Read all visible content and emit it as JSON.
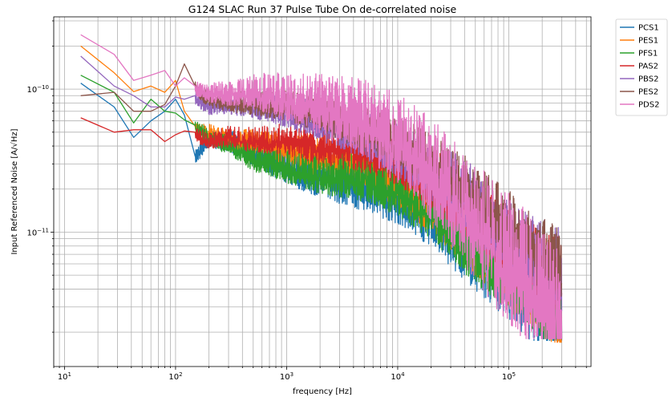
{
  "chart_data": {
    "type": "line",
    "title": "G124 SLAC Run 37 Pulse Tube On de-correlated noise",
    "xlabel": "frequency [Hz]",
    "ylabel": "Input Referenced Noise [A/√Hz]",
    "xscale": "log",
    "yscale": "log",
    "xlim": [
      8,
      550000
    ],
    "ylim": [
      1.15e-12,
      3.2e-10
    ],
    "grid": "major-and-minor",
    "legend_position": "outside-top-right",
    "x_ticks": [
      {
        "value": 10,
        "base": "10",
        "exp": "1"
      },
      {
        "value": 100,
        "base": "10",
        "exp": "2"
      },
      {
        "value": 1000,
        "base": "10",
        "exp": "3"
      },
      {
        "value": 10000,
        "base": "10",
        "exp": "4"
      },
      {
        "value": 100000,
        "base": "10",
        "exp": "5"
      }
    ],
    "y_ticks": [
      {
        "value": 1e-10,
        "base": "10",
        "exp": "−10"
      },
      {
        "value": 1e-11,
        "base": "10",
        "exp": "−11"
      }
    ],
    "series": [
      {
        "name": "PCS1",
        "color": "#1f77b4",
        "points": [
          [
            14,
            1.1e-10
          ],
          [
            28,
            7.5e-11
          ],
          [
            42,
            4.6e-11
          ],
          [
            60,
            6e-11
          ],
          [
            80,
            7e-11
          ],
          [
            100,
            8.5e-11
          ],
          [
            120,
            6.6e-11
          ],
          [
            150,
            3.4e-11
          ],
          [
            200,
            4.7e-11
          ],
          [
            300,
            4.6e-11
          ],
          [
            500,
            3.9e-11
          ],
          [
            1000,
            3.1e-11
          ],
          [
            2000,
            2.7e-11
          ],
          [
            5000,
            2.4e-11
          ],
          [
            10000,
            2.1e-11
          ],
          [
            20000,
            1.6e-11
          ],
          [
            40000,
            1e-11
          ],
          [
            80000,
            6.5e-12
          ],
          [
            150000,
            4.6e-12
          ],
          [
            300000,
            3.3e-12
          ]
        ],
        "noise": [
          0.08,
          0.55
        ],
        "min_env": 1.75e-12
      },
      {
        "name": "PES1",
        "color": "#ff7f0e",
        "points": [
          [
            14,
            2e-10
          ],
          [
            28,
            1.3e-10
          ],
          [
            42,
            9.6e-11
          ],
          [
            60,
            1.05e-10
          ],
          [
            80,
            9.5e-11
          ],
          [
            100,
            1.15e-10
          ],
          [
            120,
            7e-11
          ],
          [
            150,
            5.5e-11
          ],
          [
            200,
            5.2e-11
          ],
          [
            300,
            4.6e-11
          ],
          [
            500,
            4.5e-11
          ],
          [
            1000,
            4.1e-11
          ],
          [
            2000,
            3.7e-11
          ],
          [
            5000,
            3.4e-11
          ],
          [
            10000,
            2.6e-11
          ],
          [
            20000,
            1.9e-11
          ],
          [
            40000,
            1.2e-11
          ],
          [
            80000,
            7.5e-12
          ],
          [
            150000,
            5.5e-12
          ],
          [
            300000,
            3.6e-12
          ]
        ],
        "noise": [
          0.08,
          0.5
        ],
        "min_env": 1.7e-12
      },
      {
        "name": "PFS1",
        "color": "#2ca02c",
        "points": [
          [
            14,
            1.25e-10
          ],
          [
            28,
            9.5e-11
          ],
          [
            42,
            5.8e-11
          ],
          [
            60,
            8.5e-11
          ],
          [
            80,
            7e-11
          ],
          [
            100,
            6.8e-11
          ],
          [
            120,
            6.1e-11
          ],
          [
            150,
            5.6e-11
          ],
          [
            200,
            4.8e-11
          ],
          [
            300,
            4.3e-11
          ],
          [
            500,
            3.5e-11
          ],
          [
            1000,
            3.1e-11
          ],
          [
            2000,
            2.8e-11
          ],
          [
            5000,
            2.7e-11
          ],
          [
            10000,
            2.3e-11
          ],
          [
            20000,
            1.7e-11
          ],
          [
            40000,
            1.05e-11
          ],
          [
            80000,
            7e-12
          ],
          [
            150000,
            5e-12
          ],
          [
            300000,
            3.4e-12
          ]
        ],
        "noise": [
          0.08,
          0.5
        ],
        "min_env": 1.8e-12
      },
      {
        "name": "PAS2",
        "color": "#d62728",
        "points": [
          [
            14,
            6.3e-11
          ],
          [
            28,
            5e-11
          ],
          [
            42,
            5.2e-11
          ],
          [
            60,
            5.2e-11
          ],
          [
            80,
            4.3e-11
          ],
          [
            100,
            4.8e-11
          ],
          [
            120,
            5.1e-11
          ],
          [
            150,
            5e-11
          ],
          [
            200,
            4.5e-11
          ],
          [
            300,
            4.9e-11
          ],
          [
            500,
            4.7e-11
          ],
          [
            1000,
            4.8e-11
          ],
          [
            2000,
            4.5e-11
          ],
          [
            5000,
            4.3e-11
          ],
          [
            10000,
            3.8e-11
          ],
          [
            20000,
            2.8e-11
          ],
          [
            40000,
            1.9e-11
          ],
          [
            80000,
            1.1e-11
          ],
          [
            150000,
            7.5e-12
          ],
          [
            300000,
            5.5e-12
          ]
        ],
        "noise": [
          0.08,
          0.5
        ],
        "min_env": 2.4e-12
      },
      {
        "name": "PBS2",
        "color": "#9467bd",
        "points": [
          [
            14,
            1.7e-10
          ],
          [
            28,
            1.05e-10
          ],
          [
            42,
            9e-11
          ],
          [
            60,
            7.5e-11
          ],
          [
            80,
            7.5e-11
          ],
          [
            100,
            8.8e-11
          ],
          [
            120,
            8.5e-11
          ],
          [
            150,
            9e-11
          ],
          [
            200,
            7.8e-11
          ],
          [
            300,
            8.3e-11
          ],
          [
            500,
            8.2e-11
          ],
          [
            1000,
            7.6e-11
          ],
          [
            2000,
            6.6e-11
          ],
          [
            5000,
            5.4e-11
          ],
          [
            10000,
            4.3e-11
          ],
          [
            20000,
            3.2e-11
          ],
          [
            40000,
            2.2e-11
          ],
          [
            80000,
            1.3e-11
          ],
          [
            150000,
            8.5e-12
          ],
          [
            300000,
            6.4e-12
          ]
        ],
        "noise": [
          0.08,
          0.5
        ],
        "min_env": 2.8e-12
      },
      {
        "name": "PES2",
        "color": "#8c564b",
        "points": [
          [
            14,
            9e-11
          ],
          [
            28,
            9.5e-11
          ],
          [
            42,
            7e-11
          ],
          [
            60,
            7e-11
          ],
          [
            80,
            7.8e-11
          ],
          [
            100,
            1.05e-10
          ],
          [
            120,
            1.5e-10
          ],
          [
            150,
            1.05e-10
          ],
          [
            200,
            8.8e-11
          ],
          [
            300,
            8.5e-11
          ],
          [
            500,
            8.5e-11
          ],
          [
            1000,
            8.2e-11
          ],
          [
            2000,
            7.2e-11
          ],
          [
            5000,
            5.8e-11
          ],
          [
            10000,
            4.8e-11
          ],
          [
            20000,
            3.6e-11
          ],
          [
            40000,
            2.4e-11
          ],
          [
            80000,
            1.5e-11
          ],
          [
            150000,
            1e-11
          ],
          [
            300000,
            6.5e-12
          ]
        ],
        "noise": [
          0.08,
          0.45
        ],
        "min_env": 3e-12
      },
      {
        "name": "PDS2",
        "color": "#e377c2",
        "points": [
          [
            14,
            2.4e-10
          ],
          [
            28,
            1.75e-10
          ],
          [
            42,
            1.15e-10
          ],
          [
            60,
            1.25e-10
          ],
          [
            80,
            1.35e-10
          ],
          [
            100,
            1.05e-10
          ],
          [
            120,
            1.2e-10
          ],
          [
            150,
            1.05e-10
          ],
          [
            200,
            9.8e-11
          ],
          [
            300,
            1e-10
          ],
          [
            500,
            1.05e-10
          ],
          [
            1000,
            9.8e-11
          ],
          [
            2000,
            9e-11
          ],
          [
            5000,
            7.5e-11
          ],
          [
            10000,
            5.5e-11
          ],
          [
            20000,
            3.5e-11
          ],
          [
            40000,
            1.9e-11
          ],
          [
            80000,
            1.05e-11
          ],
          [
            150000,
            6.5e-12
          ],
          [
            300000,
            4.2e-12
          ]
        ],
        "noise": [
          0.08,
          0.85
        ],
        "min_env": 1.8e-12
      }
    ]
  }
}
